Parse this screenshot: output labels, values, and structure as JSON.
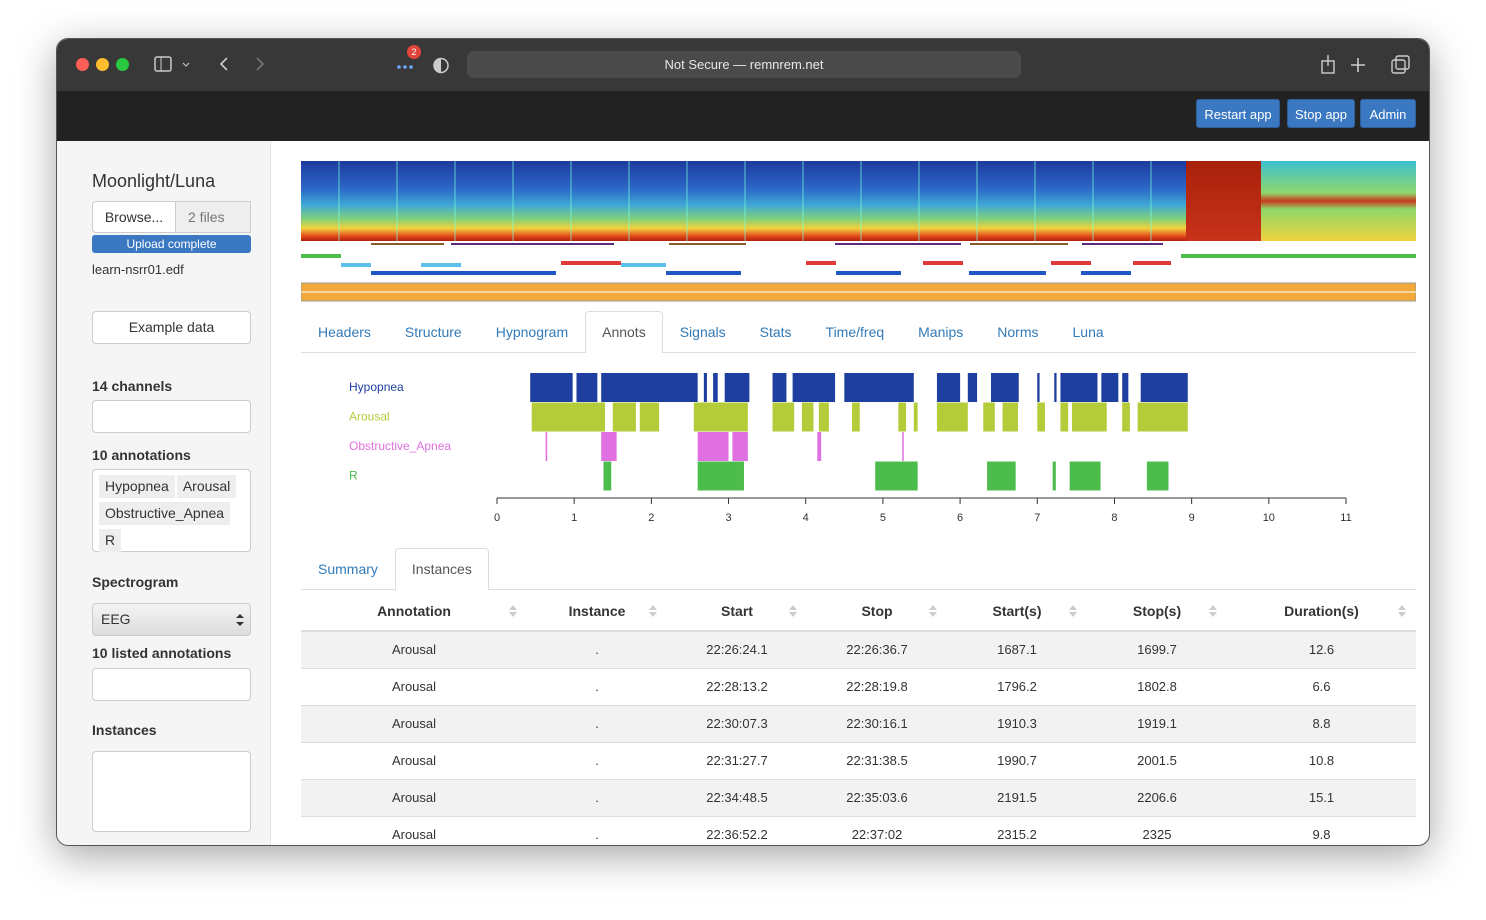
{
  "browser": {
    "address": "Not Secure — remnrem.net",
    "badge": 2
  },
  "topbar": {
    "buttons": [
      "Restart app",
      "Stop app",
      "Admin"
    ]
  },
  "sidebar": {
    "title": "Moonlight/Luna",
    "browse": "Browse...",
    "files": "2 files",
    "progress": "Upload complete",
    "filename": "learn-nsrr01.edf",
    "example": "Example data",
    "channels": "14 channels",
    "annotations": "10 annotations",
    "tags": [
      "Hypopnea",
      "Arousal",
      "Obstructive_Apnea",
      "R"
    ],
    "spectrogram_label": "Spectrogram",
    "spectrogram_select": "EEG",
    "listed": "10 listed annotations",
    "instances": "Instances"
  },
  "tabs": {
    "items": [
      "Headers",
      "Structure",
      "Hypnogram",
      "Annots",
      "Signals",
      "Stats",
      "Time/freq",
      "Manips",
      "Norms",
      "Luna"
    ],
    "active": 3
  },
  "annot_chart": {
    "type": "timeline",
    "xlim": [
      0,
      11
    ],
    "xticks": [
      0,
      1,
      2,
      3,
      4,
      5,
      6,
      7,
      8,
      9,
      10,
      11
    ],
    "series": [
      {
        "name": "Hypopnea",
        "color": "#1f3fa0",
        "events": [
          [
            0.43,
            0.98
          ],
          [
            1.03,
            1.3
          ],
          [
            1.35,
            2.6
          ],
          [
            2.68,
            2.72
          ],
          [
            2.8,
            2.86
          ],
          [
            2.95,
            3.27
          ],
          [
            3.57,
            3.75
          ],
          [
            3.83,
            4.38
          ],
          [
            4.5,
            5.4
          ],
          [
            5.7,
            6.0
          ],
          [
            6.1,
            6.22
          ],
          [
            6.4,
            6.76
          ],
          [
            7.0,
            7.03
          ],
          [
            7.22,
            7.25
          ],
          [
            7.3,
            7.78
          ],
          [
            7.83,
            8.05
          ],
          [
            8.1,
            8.18
          ],
          [
            8.34,
            8.95
          ]
        ]
      },
      {
        "name": "Arousal",
        "color": "#b5cc3a",
        "events": [
          [
            0.45,
            1.4
          ],
          [
            1.5,
            1.8
          ],
          [
            1.85,
            2.1
          ],
          [
            2.55,
            3.25
          ],
          [
            3.57,
            3.85
          ],
          [
            3.95,
            4.1
          ],
          [
            4.17,
            4.3
          ],
          [
            4.6,
            4.7
          ],
          [
            5.2,
            5.3
          ],
          [
            5.4,
            5.45
          ],
          [
            5.7,
            6.1
          ],
          [
            6.3,
            6.45
          ],
          [
            6.55,
            6.75
          ],
          [
            7.0,
            7.1
          ],
          [
            7.3,
            7.4
          ],
          [
            7.45,
            7.9
          ],
          [
            8.1,
            8.2
          ],
          [
            8.3,
            8.95
          ]
        ]
      },
      {
        "name": "Obstructive_Apnea",
        "color": "#e070e0",
        "events": [
          [
            0.63,
            0.65
          ],
          [
            1.35,
            1.55
          ],
          [
            2.6,
            3.0
          ],
          [
            3.05,
            3.25
          ],
          [
            4.15,
            4.2
          ],
          [
            5.25,
            5.27
          ]
        ]
      },
      {
        "name": "R",
        "color": "#4cbc4c",
        "events": [
          [
            1.38,
            1.48
          ],
          [
            2.6,
            3.2
          ],
          [
            4.9,
            5.45
          ],
          [
            6.35,
            6.72
          ],
          [
            7.2,
            7.24
          ],
          [
            7.42,
            7.82
          ],
          [
            8.42,
            8.7
          ]
        ]
      }
    ]
  },
  "subtabs": {
    "items": [
      "Summary",
      "Instances"
    ],
    "active": 1
  },
  "table": {
    "columns": [
      "Annotation",
      "Instance",
      "Start",
      "Stop",
      "Start(s)",
      "Stop(s)",
      "Duration(s)"
    ],
    "rows": [
      [
        "Arousal",
        ".",
        "22:26:24.1",
        "22:26:36.7",
        1687.1,
        1699.7,
        12.6
      ],
      [
        "Arousal",
        ".",
        "22:28:13.2",
        "22:28:19.8",
        1796.2,
        1802.8,
        6.6
      ],
      [
        "Arousal",
        ".",
        "22:30:07.3",
        "22:30:16.1",
        1910.3,
        1919.1,
        8.8
      ],
      [
        "Arousal",
        ".",
        "22:31:27.7",
        "22:31:38.5",
        1990.7,
        2001.5,
        10.8
      ],
      [
        "Arousal",
        ".",
        "22:34:48.5",
        "22:35:03.6",
        2191.5,
        2206.6,
        15.1
      ],
      [
        "Arousal",
        ".",
        "22:36:52.2",
        "22:37:02",
        2315.2,
        2325,
        9.8
      ]
    ]
  }
}
